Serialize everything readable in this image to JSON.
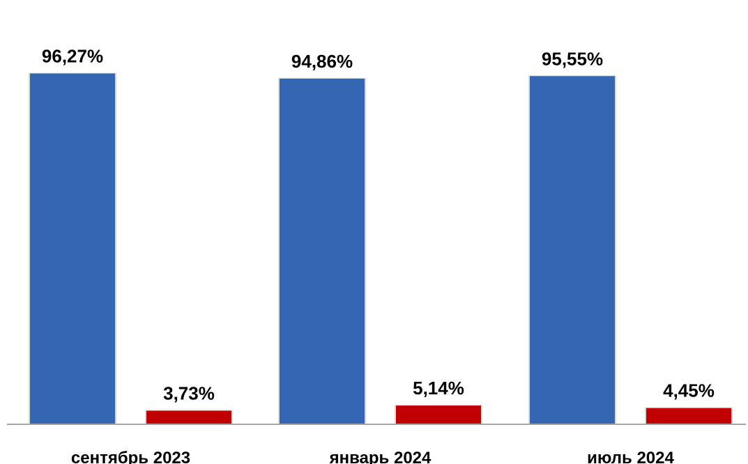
{
  "chart_data": {
    "type": "bar",
    "title": "",
    "xlabel": "",
    "ylabel": "",
    "ylim": [
      0,
      100
    ],
    "grid": false,
    "legend": "none",
    "categories": [
      "сентябрь 2023",
      "январь 2024",
      "июль 2024"
    ],
    "series": [
      {
        "values": [
          96.27,
          94.86,
          95.55
        ],
        "labels": [
          "96,27%",
          "94,86%",
          "95,55%"
        ],
        "color": "#3366b3"
      },
      {
        "values": [
          3.73,
          5.14,
          4.45
        ],
        "labels": [
          "3,73%",
          "5,14%",
          "4,45%"
        ],
        "color": "#c00000"
      }
    ]
  }
}
